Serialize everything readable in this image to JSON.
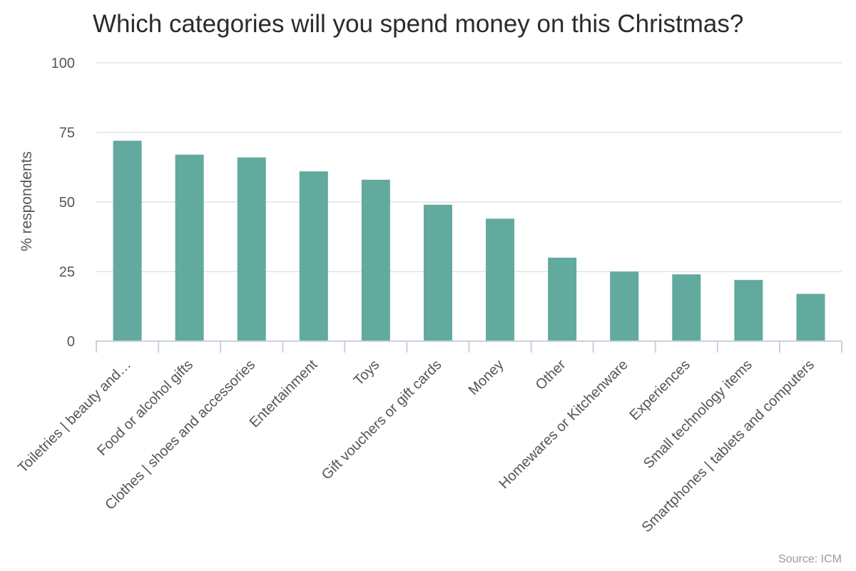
{
  "chart_data": {
    "type": "bar",
    "title": "Which categories will you spend money on this Christmas?",
    "xlabel": "",
    "ylabel": "% respondents",
    "ylim": [
      0,
      100
    ],
    "yticks": [
      0,
      25,
      50,
      75,
      100
    ],
    "grid": true,
    "bar_color": "#62a99e",
    "categories": [
      "Toiletries | beauty and…",
      "Food or alcohol gifts",
      "Clothes | shoes and accessories",
      "Entertainment",
      "Toys",
      "Gift vouchers or gift cards",
      "Money",
      "Other",
      "Homewares or Kitchenware",
      "Experiences",
      "Small technology items",
      "Smartphones | tablets and computers"
    ],
    "values": [
      72,
      67,
      66,
      61,
      58,
      49,
      44,
      30,
      25,
      24,
      22,
      17
    ]
  },
  "source": "Source: ICM"
}
